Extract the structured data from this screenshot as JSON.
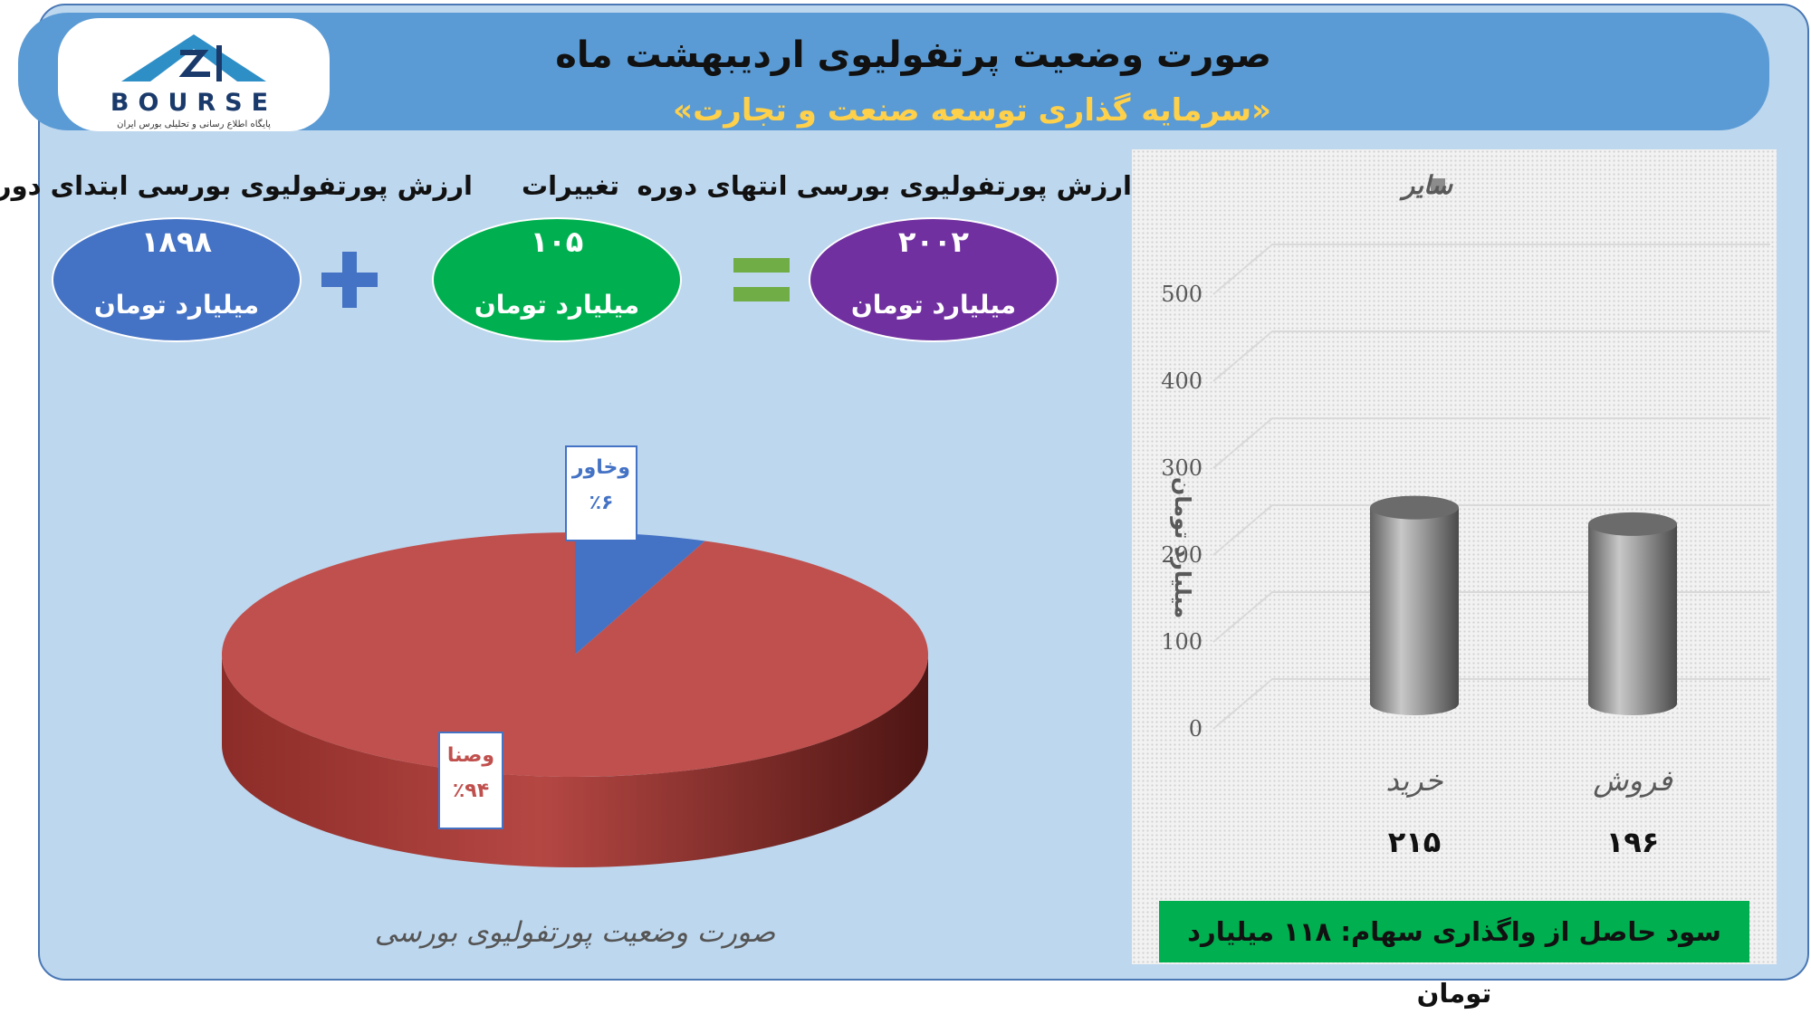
{
  "header": {
    "title": "صورت وضعیت پرتفولیوی اردیبهشت ماه",
    "subtitle": "«سرمایه گذاری توسعه صنعت و تجارت»"
  },
  "logo": {
    "text": "BOURSE",
    "caption": "پایگاه اطلاع رسانی و تحلیلی بورس ایران"
  },
  "kpis": {
    "start": {
      "label": "ارزش پورتفولیوی بورسی ابتدای دوره",
      "value": "۱۸۹۸",
      "unit": "میلیارد تومان",
      "color": "#4472c4"
    },
    "change": {
      "label": "تغییرات",
      "value": "۱۰۵",
      "unit": "میلیارد تومان",
      "color": "#00b050"
    },
    "end": {
      "label": "ارزش پورتفولیوی بورسی انتهای دوره",
      "value": "۲۰۰۲",
      "unit": "میلیارد تومان",
      "color": "#7030a0"
    },
    "plus_color": "#4472c4",
    "equals_color": "#70ad47"
  },
  "chart_data": [
    {
      "type": "pie",
      "title": "صورت وضعیت پورتفولیوی بورسی",
      "slices": [
        {
          "name": "وصنا",
          "value": 94,
          "label": "٪۹۴",
          "color": "#c0504d",
          "text_color": "#c0504d"
        },
        {
          "name": "وخاور",
          "value": 6,
          "label": "٪۶",
          "color": "#4472c4",
          "text_color": "#4472c4"
        }
      ]
    },
    {
      "type": "bar",
      "style": "3d-cylinder",
      "legend": "سایر",
      "ylabel": "میلیارد تومان",
      "ylim": [
        0,
        500
      ],
      "yticks": [
        "0",
        "100",
        "200",
        "300",
        "400",
        "500"
      ],
      "categories": [
        "خرید",
        "فروش"
      ],
      "values": [
        215,
        196
      ],
      "value_labels": [
        "۲۱۵",
        "۱۹۶"
      ],
      "color": "#8c8c8c",
      "footer": "سود حاصل از واگذاری سهام: ۱۱۸ میلیارد تومان"
    }
  ]
}
